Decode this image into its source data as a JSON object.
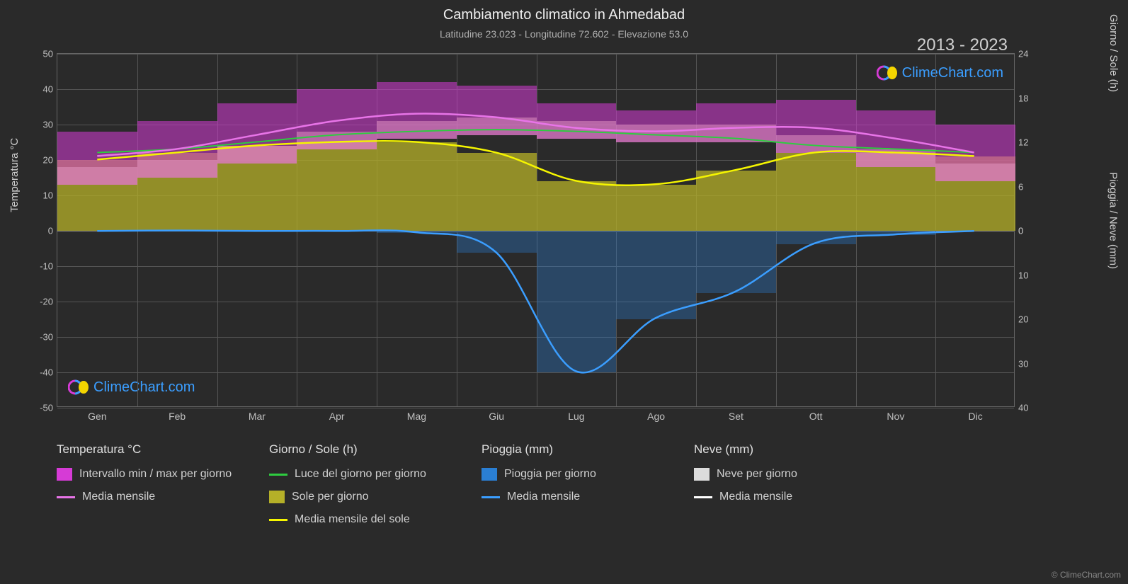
{
  "title": "Cambiamento climatico in Ahmedabad",
  "subtitle": "Latitudine 23.023 - Longitudine 72.602 - Elevazione 53.0",
  "date_range": "2013 - 2023",
  "logo_text": "ClimeChart.com",
  "copyright": "© ClimeChart.com",
  "axes": {
    "y_left_label": "Temperatura °C",
    "y_left_min": -50,
    "y_left_max": 50,
    "y_left_ticks": [
      -50,
      -40,
      -30,
      -20,
      -10,
      0,
      10,
      20,
      30,
      40,
      50
    ],
    "y_right1_label": "Giorno / Sole (h)",
    "y_right1_ticks": [
      0,
      6,
      12,
      18,
      24
    ],
    "y_right2_label": "Pioggia / Neve (mm)",
    "y_right2_ticks": [
      0,
      10,
      20,
      30,
      40
    ],
    "x_months": [
      "Gen",
      "Feb",
      "Mar",
      "Apr",
      "Mag",
      "Giu",
      "Lug",
      "Ago",
      "Set",
      "Ott",
      "Nov",
      "Dic"
    ]
  },
  "colors": {
    "bg": "#2a2a2a",
    "grid": "#555555",
    "temp_range_fill": "#d63bd6",
    "temp_range_low_fill": "#e89ac5",
    "temp_mean_line": "#e874e8",
    "daylight_line": "#2ecc40",
    "sun_fill": "#b5b028",
    "sun_mean_line": "#f5f500",
    "rain_fill": "#2a7fd4",
    "rain_mean_line": "#3b9eff",
    "snow_fill": "#dcdcdc",
    "snow_mean_line": "#ffffff"
  },
  "series": {
    "temp_mean": [
      21,
      23,
      27,
      31,
      33,
      32,
      29,
      28,
      29,
      29,
      26,
      22
    ],
    "temp_max": [
      28,
      31,
      36,
      40,
      42,
      41,
      36,
      34,
      36,
      37,
      34,
      30
    ],
    "temp_min": [
      13,
      15,
      19,
      23,
      26,
      27,
      26,
      25,
      25,
      22,
      18,
      14
    ],
    "daylight": [
      22,
      23,
      25,
      27,
      28,
      28.5,
      28,
      27,
      26,
      24,
      23,
      22
    ],
    "sun_hours": [
      20,
      22,
      24,
      25,
      25,
      22,
      14,
      13,
      17,
      22,
      22,
      21
    ],
    "rain_mm": [
      0.2,
      0.1,
      0.2,
      0.2,
      0.5,
      5,
      32,
      20,
      14,
      3,
      1,
      0.2
    ]
  },
  "legend": {
    "col1_title": "Temperatura °C",
    "col1_items": [
      {
        "label": "Intervallo min / max per giorno",
        "type": "box",
        "color": "#d63bd6"
      },
      {
        "label": "Media mensile",
        "type": "line",
        "color": "#e874e8"
      }
    ],
    "col2_title": "Giorno / Sole (h)",
    "col2_items": [
      {
        "label": "Luce del giorno per giorno",
        "type": "line",
        "color": "#2ecc40"
      },
      {
        "label": "Sole per giorno",
        "type": "box",
        "color": "#b5b028"
      },
      {
        "label": "Media mensile del sole",
        "type": "line",
        "color": "#f5f500"
      }
    ],
    "col3_title": "Pioggia (mm)",
    "col3_items": [
      {
        "label": "Pioggia per giorno",
        "type": "box",
        "color": "#2a7fd4"
      },
      {
        "label": "Media mensile",
        "type": "line",
        "color": "#3b9eff"
      }
    ],
    "col4_title": "Neve (mm)",
    "col4_items": [
      {
        "label": "Neve per giorno",
        "type": "box",
        "color": "#dcdcdc"
      },
      {
        "label": "Media mensile",
        "type": "line",
        "color": "#ffffff"
      }
    ]
  }
}
